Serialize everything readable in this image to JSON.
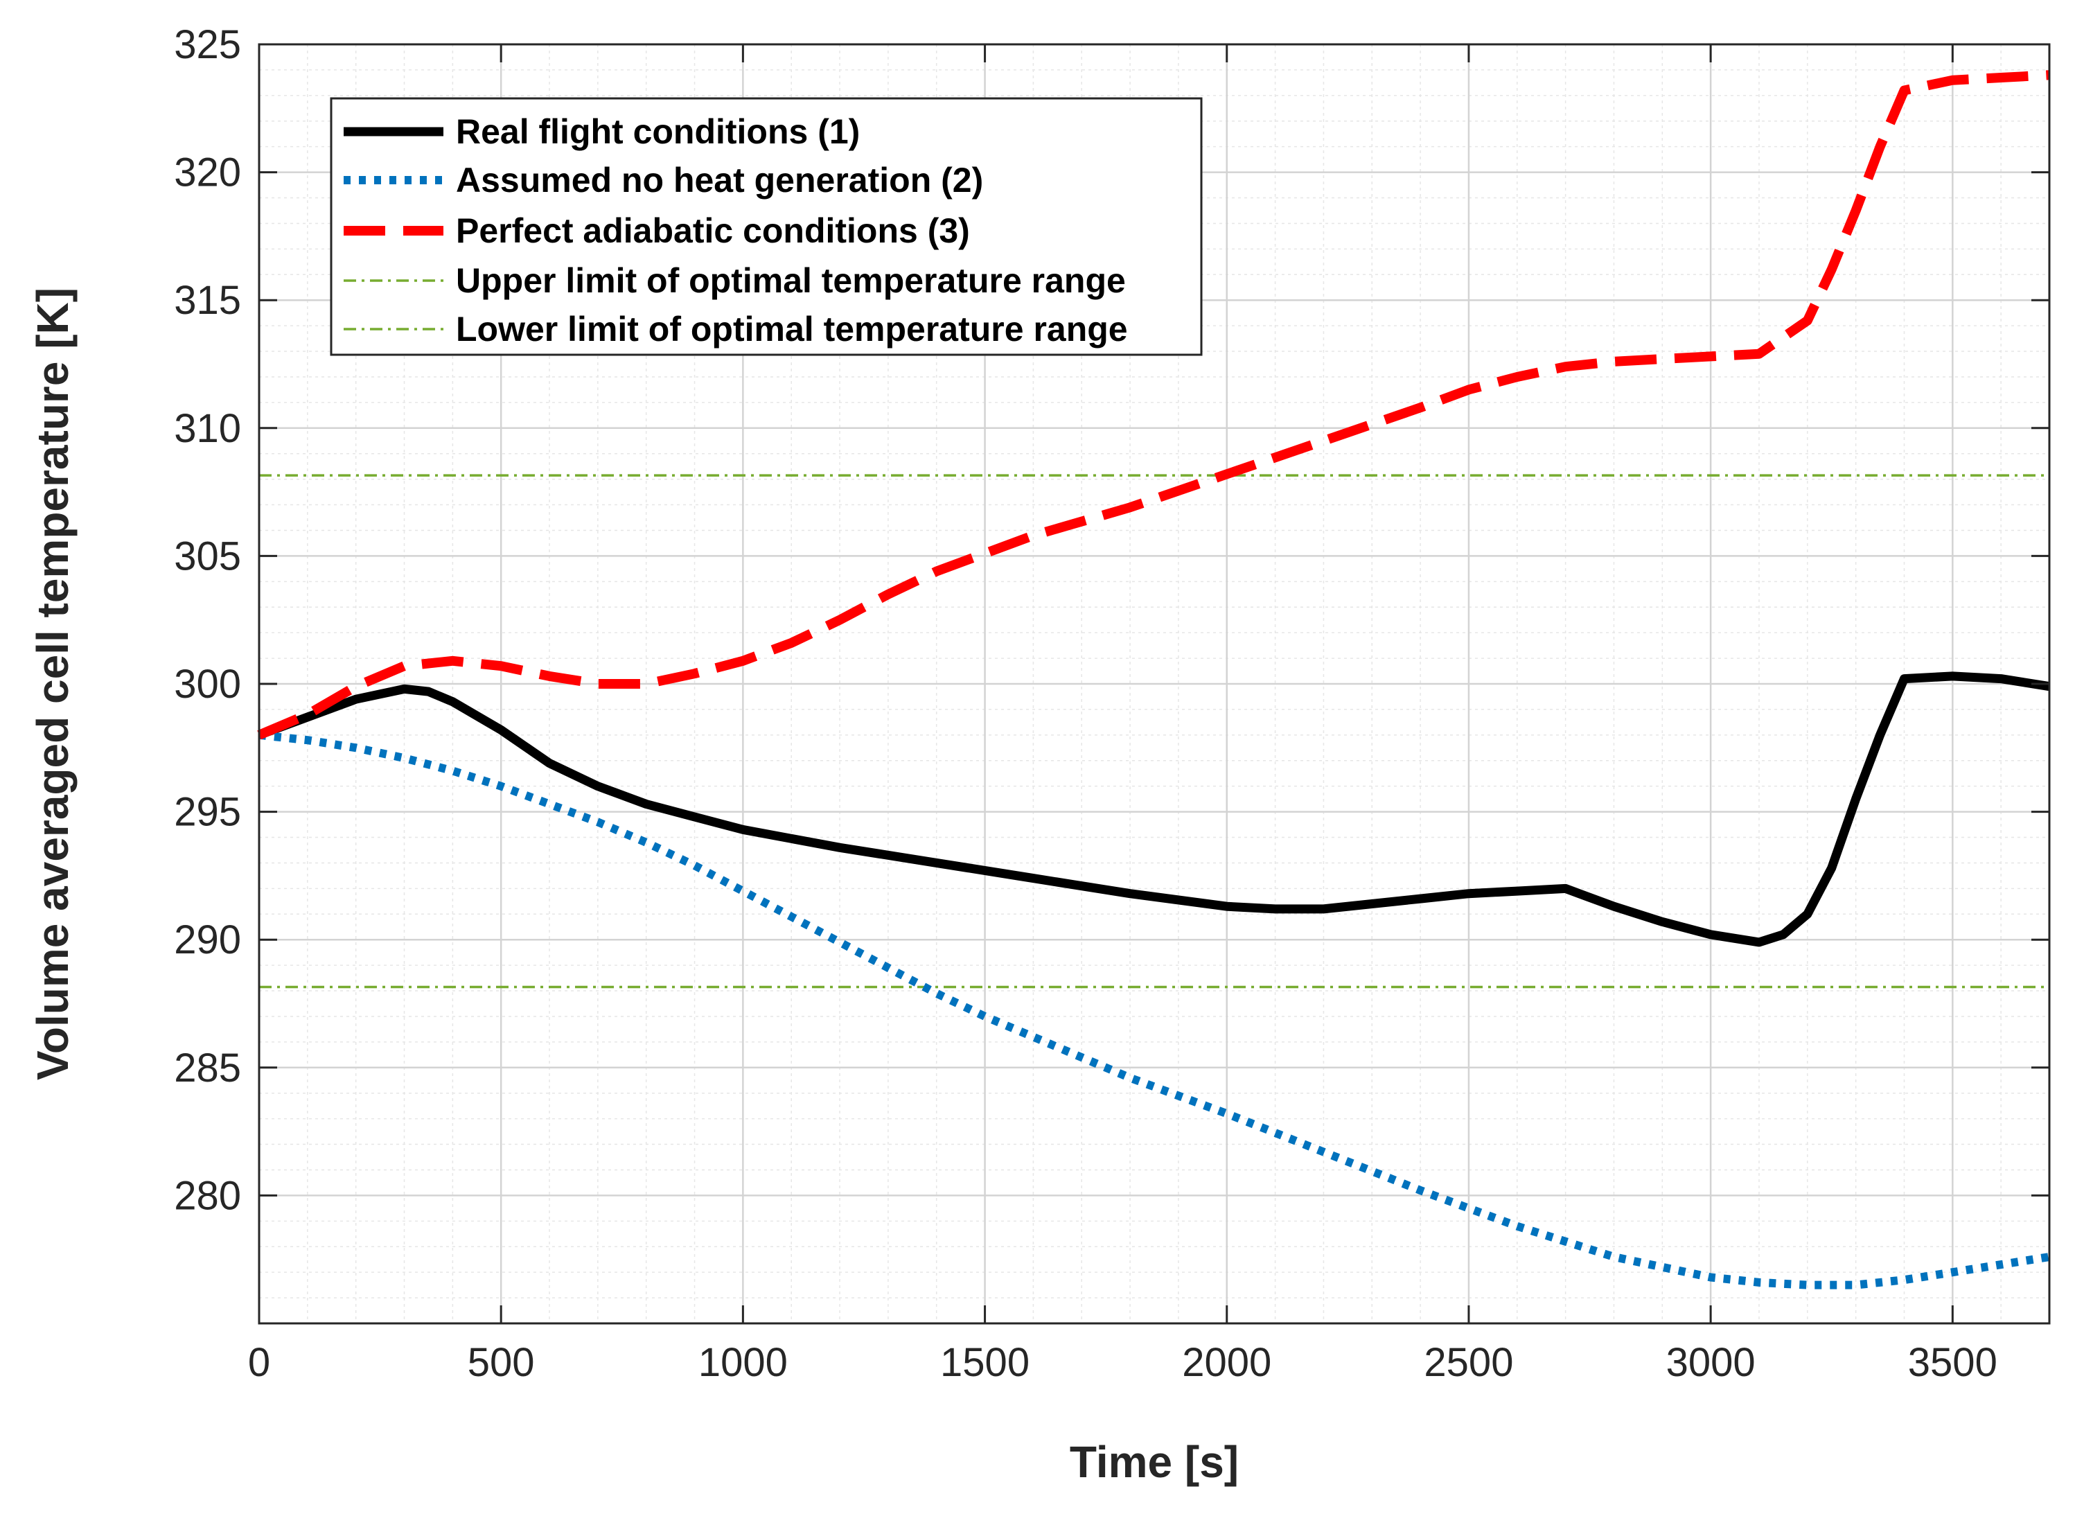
{
  "chart_data": {
    "type": "line",
    "title": "",
    "xlabel": "Time [s]",
    "ylabel": "Volume averaged cell temperature [K]",
    "xlim": [
      0,
      3700
    ],
    "ylim": [
      275,
      325
    ],
    "xticks": [
      0,
      500,
      1000,
      1500,
      2000,
      2500,
      3000,
      3500
    ],
    "yticks": [
      280,
      285,
      290,
      295,
      300,
      305,
      310,
      315,
      320,
      325
    ],
    "grid": true,
    "minor_grid": true,
    "legend_location": "top-left",
    "series": [
      {
        "name": "Real flight conditions (1)",
        "color": "#000000",
        "style": "solid",
        "x": [
          0,
          100,
          200,
          300,
          350,
          400,
          500,
          600,
          700,
          800,
          900,
          1000,
          1200,
          1400,
          1600,
          1800,
          2000,
          2100,
          2200,
          2400,
          2500,
          2600,
          2700,
          2800,
          2900,
          3000,
          3100,
          3150,
          3200,
          3250,
          3300,
          3350,
          3400,
          3500,
          3600,
          3700
        ],
        "y": [
          298,
          298.7,
          299.4,
          299.8,
          299.7,
          299.3,
          298.2,
          296.9,
          296.0,
          295.3,
          294.8,
          294.3,
          293.6,
          293.0,
          292.4,
          291.8,
          291.3,
          291.2,
          291.2,
          291.6,
          291.8,
          291.9,
          292.0,
          291.3,
          290.7,
          290.2,
          289.9,
          290.2,
          291.0,
          292.8,
          295.5,
          298.0,
          300.2,
          300.3,
          300.2,
          299.9
        ]
      },
      {
        "name": "Assumed no heat generation (2)",
        "color": "#0072BD",
        "style": "dotted",
        "x": [
          0,
          100,
          200,
          300,
          400,
          500,
          600,
          700,
          800,
          900,
          1000,
          1100,
          1200,
          1300,
          1400,
          1500,
          1600,
          1800,
          2000,
          2200,
          2400,
          2600,
          2800,
          3000,
          3100,
          3200,
          3300,
          3400,
          3500,
          3600,
          3700
        ],
        "y": [
          298,
          297.8,
          297.5,
          297.1,
          296.6,
          296.0,
          295.3,
          294.6,
          293.8,
          292.9,
          291.9,
          290.9,
          289.9,
          288.9,
          287.9,
          287.0,
          286.2,
          284.6,
          283.2,
          281.7,
          280.2,
          278.8,
          277.6,
          276.8,
          276.6,
          276.5,
          276.5,
          276.7,
          277.0,
          277.3,
          277.6
        ]
      },
      {
        "name": "Perfect adiabatic conditions (3)",
        "color": "#FF0000",
        "style": "dashed",
        "x": [
          0,
          100,
          200,
          300,
          400,
          500,
          600,
          700,
          800,
          900,
          1000,
          1100,
          1200,
          1300,
          1400,
          1500,
          1600,
          1800,
          2000,
          2200,
          2400,
          2500,
          2600,
          2700,
          2800,
          2900,
          3000,
          3100,
          3200,
          3250,
          3300,
          3350,
          3400,
          3500,
          3600,
          3700
        ],
        "y": [
          298,
          298.8,
          299.9,
          300.7,
          300.9,
          300.7,
          300.3,
          300.0,
          300.0,
          300.4,
          300.9,
          301.6,
          302.5,
          303.5,
          304.4,
          305.1,
          305.8,
          306.9,
          308.2,
          309.5,
          310.8,
          311.5,
          312.0,
          312.4,
          312.6,
          312.7,
          312.8,
          312.9,
          314.2,
          316.2,
          318.5,
          321.0,
          323.2,
          323.6,
          323.7,
          323.8
        ]
      },
      {
        "name": "Upper limit of optimal temperature range",
        "color": "#77AC30",
        "style": "dashdot",
        "x": [
          0,
          3700
        ],
        "y": [
          308.15,
          308.15
        ]
      },
      {
        "name": "Lower limit of optimal temperature range",
        "color": "#77AC30",
        "style": "dashdot",
        "x": [
          0,
          3700
        ],
        "y": [
          288.15,
          288.15
        ]
      }
    ]
  }
}
